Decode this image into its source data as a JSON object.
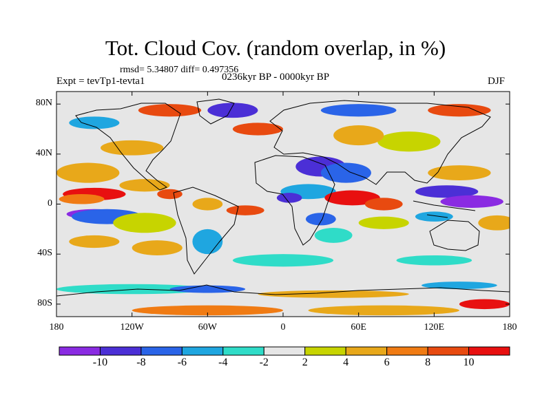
{
  "title": "Tot. Cloud Cov. (random overlap, in %)",
  "stats": "rmsd= 5.34807 diff= 0.497356",
  "experiment": "Expt = tevTp1-tevta1",
  "period": "0236kyr BP - 0000kyr BP",
  "season": "DJF",
  "lat_ticks": [
    {
      "label": "80N",
      "lat": 80
    },
    {
      "label": "40N",
      "lat": 40
    },
    {
      "label": "0",
      "lat": 0
    },
    {
      "label": "40S",
      "lat": -40
    },
    {
      "label": "80S",
      "lat": -80
    }
  ],
  "lon_ticks": [
    {
      "label": "180",
      "lon": -180
    },
    {
      "label": "120W",
      "lon": -120
    },
    {
      "label": "60W",
      "lon": -60
    },
    {
      "label": "0",
      "lon": 0
    },
    {
      "label": "60E",
      "lon": 60
    },
    {
      "label": "120E",
      "lon": 120
    },
    {
      "label": "180",
      "lon": 180
    }
  ],
  "colorbar": {
    "colors": [
      "#8a2be2",
      "#4b2fd6",
      "#2a64e8",
      "#1fa6e0",
      "#2fdcc8",
      "#e6e6e6",
      "#c7d400",
      "#e8a81a",
      "#f07b13",
      "#e84a10",
      "#e81010"
    ],
    "labels": [
      {
        "text": "-10",
        "index": 1
      },
      {
        "text": "-8",
        "index": 2
      },
      {
        "text": "-6",
        "index": 3
      },
      {
        "text": "-4",
        "index": 4
      },
      {
        "text": "-2",
        "index": 5
      },
      {
        "text": "2",
        "index": 6
      },
      {
        "text": "4",
        "index": 7
      },
      {
        "text": "6",
        "index": 8
      },
      {
        "text": "8",
        "index": 9
      },
      {
        "text": "10",
        "index": 10
      }
    ]
  },
  "map_blobs": [
    {
      "lon": -150,
      "lat": 8,
      "rlon": 25,
      "rlat": 5,
      "color": "#e81010"
    },
    {
      "lon": -160,
      "lat": 4,
      "rlon": 18,
      "rlat": 4,
      "color": "#f07b13"
    },
    {
      "lon": -150,
      "lat": -8,
      "rlon": 22,
      "rlat": 4,
      "color": "#8a2be2"
    },
    {
      "lon": -140,
      "lat": -10,
      "rlon": 28,
      "rlat": 6,
      "color": "#2a64e8"
    },
    {
      "lon": -155,
      "lat": 25,
      "rlon": 25,
      "rlat": 8,
      "color": "#e8a81a"
    },
    {
      "lon": -110,
      "lat": 15,
      "rlon": 20,
      "rlat": 5,
      "color": "#e8a81a"
    },
    {
      "lon": -90,
      "lat": 8,
      "rlon": 10,
      "rlat": 4,
      "color": "#e84a10"
    },
    {
      "lon": -60,
      "lat": 0,
      "rlon": 12,
      "rlat": 5,
      "color": "#e8a81a"
    },
    {
      "lon": -30,
      "lat": -5,
      "rlon": 15,
      "rlat": 4,
      "color": "#e84a10"
    },
    {
      "lon": -110,
      "lat": -15,
      "rlon": 25,
      "rlat": 8,
      "color": "#c7d400"
    },
    {
      "lon": -60,
      "lat": -30,
      "rlon": 12,
      "rlat": 10,
      "color": "#1fa6e0"
    },
    {
      "lon": -100,
      "lat": -35,
      "rlon": 20,
      "rlat": 6,
      "color": "#e8a81a"
    },
    {
      "lon": -150,
      "lat": -30,
      "rlon": 20,
      "rlat": 5,
      "color": "#e8a81a"
    },
    {
      "lon": 30,
      "lat": 30,
      "rlon": 20,
      "rlat": 8,
      "color": "#4b2fd6"
    },
    {
      "lon": 50,
      "lat": 25,
      "rlon": 20,
      "rlat": 8,
      "color": "#2a64e8"
    },
    {
      "lon": 20,
      "lat": 10,
      "rlon": 22,
      "rlat": 6,
      "color": "#1fa6e0"
    },
    {
      "lon": 5,
      "lat": 5,
      "rlon": 10,
      "rlat": 4,
      "color": "#4b2fd6"
    },
    {
      "lon": 55,
      "lat": 5,
      "rlon": 22,
      "rlat": 6,
      "color": "#e81010"
    },
    {
      "lon": 80,
      "lat": 0,
      "rlon": 15,
      "rlat": 5,
      "color": "#e84a10"
    },
    {
      "lon": 30,
      "lat": -12,
      "rlon": 12,
      "rlat": 5,
      "color": "#2a64e8"
    },
    {
      "lon": 40,
      "lat": -25,
      "rlon": 15,
      "rlat": 6,
      "color": "#2fdcc8"
    },
    {
      "lon": 80,
      "lat": -15,
      "rlon": 20,
      "rlat": 5,
      "color": "#c7d400"
    },
    {
      "lon": 130,
      "lat": 10,
      "rlon": 25,
      "rlat": 5,
      "color": "#4b2fd6"
    },
    {
      "lon": 150,
      "lat": 2,
      "rlon": 25,
      "rlat": 5,
      "color": "#8a2be2"
    },
    {
      "lon": 140,
      "lat": 25,
      "rlon": 25,
      "rlat": 6,
      "color": "#e8a81a"
    },
    {
      "lon": 120,
      "lat": -10,
      "rlon": 15,
      "rlat": 4,
      "color": "#1fa6e0"
    },
    {
      "lon": 170,
      "lat": -15,
      "rlon": 15,
      "rlat": 6,
      "color": "#e8a81a"
    },
    {
      "lon": 100,
      "lat": 50,
      "rlon": 25,
      "rlat": 8,
      "color": "#c7d400"
    },
    {
      "lon": 60,
      "lat": 55,
      "rlon": 20,
      "rlat": 8,
      "color": "#e8a81a"
    },
    {
      "lon": -40,
      "lat": 75,
      "rlon": 20,
      "rlat": 6,
      "color": "#4b2fd6"
    },
    {
      "lon": -90,
      "lat": 75,
      "rlon": 25,
      "rlat": 5,
      "color": "#e84a10"
    },
    {
      "lon": 60,
      "lat": 75,
      "rlon": 30,
      "rlat": 5,
      "color": "#2a64e8"
    },
    {
      "lon": 140,
      "lat": 75,
      "rlon": 25,
      "rlat": 5,
      "color": "#e84a10"
    },
    {
      "lon": -150,
      "lat": 65,
      "rlon": 20,
      "rlat": 5,
      "color": "#1fa6e0"
    },
    {
      "lon": -120,
      "lat": 45,
      "rlon": 25,
      "rlat": 6,
      "color": "#e8a81a"
    },
    {
      "lon": -20,
      "lat": 60,
      "rlon": 20,
      "rlat": 5,
      "color": "#e84a10"
    },
    {
      "lon": 0,
      "lat": -45,
      "rlon": 40,
      "rlat": 5,
      "color": "#2fdcc8"
    },
    {
      "lon": 120,
      "lat": -45,
      "rlon": 30,
      "rlat": 4,
      "color": "#2fdcc8"
    },
    {
      "lon": -120,
      "lat": -68,
      "rlon": 60,
      "rlat": 4,
      "color": "#2fdcc8"
    },
    {
      "lon": -60,
      "lat": -68,
      "rlon": 30,
      "rlat": 3,
      "color": "#2a64e8"
    },
    {
      "lon": 40,
      "lat": -72,
      "rlon": 60,
      "rlat": 3,
      "color": "#e8a81a"
    },
    {
      "lon": 140,
      "lat": -65,
      "rlon": 30,
      "rlat": 3,
      "color": "#1fa6e0"
    },
    {
      "lon": -60,
      "lat": -85,
      "rlon": 60,
      "rlat": 4,
      "color": "#f07b13"
    },
    {
      "lon": 80,
      "lat": -85,
      "rlon": 60,
      "rlat": 4,
      "color": "#e8a81a"
    },
    {
      "lon": 160,
      "lat": -80,
      "rlon": 20,
      "rlat": 4,
      "color": "#e81010"
    }
  ]
}
